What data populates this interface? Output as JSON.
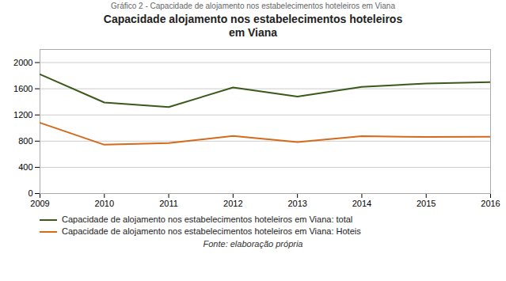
{
  "chart_data": {
    "type": "line",
    "title": "Capacidade alojamento nos estabelecimentos hoteleiros\nem Viana",
    "subtitle": "Gráfico 2 - Capacidade de alojamento nos estabelecimentos hoteleiros em Viana",
    "caption": "Fonte: elaboração própria",
    "x": [
      2009,
      2010,
      2011,
      2012,
      2013,
      2014,
      2015,
      2016
    ],
    "series": [
      {
        "name": "Capacidade de alojamento nos estabelecimentos hoteleiros em Viana: total",
        "color": "#3a5a1a",
        "values": [
          1820,
          1390,
          1320,
          1620,
          1480,
          1630,
          1680,
          1700
        ]
      },
      {
        "name": "Capacidade de alojamento nos estabelecimentos hoteleiros em Viana: Hoteis",
        "color": "#d46a1a",
        "values": [
          1080,
          745,
          770,
          880,
          785,
          875,
          865,
          868
        ]
      }
    ],
    "xlim": [
      2009,
      2016
    ],
    "xticks": [
      2009,
      2010,
      2011,
      2012,
      2013,
      2014,
      2015,
      2016
    ],
    "ylim": [
      0,
      2200
    ],
    "yticks": [
      0,
      400,
      800,
      1200,
      1600,
      2000
    ],
    "grid": true,
    "legend": "lower left"
  }
}
